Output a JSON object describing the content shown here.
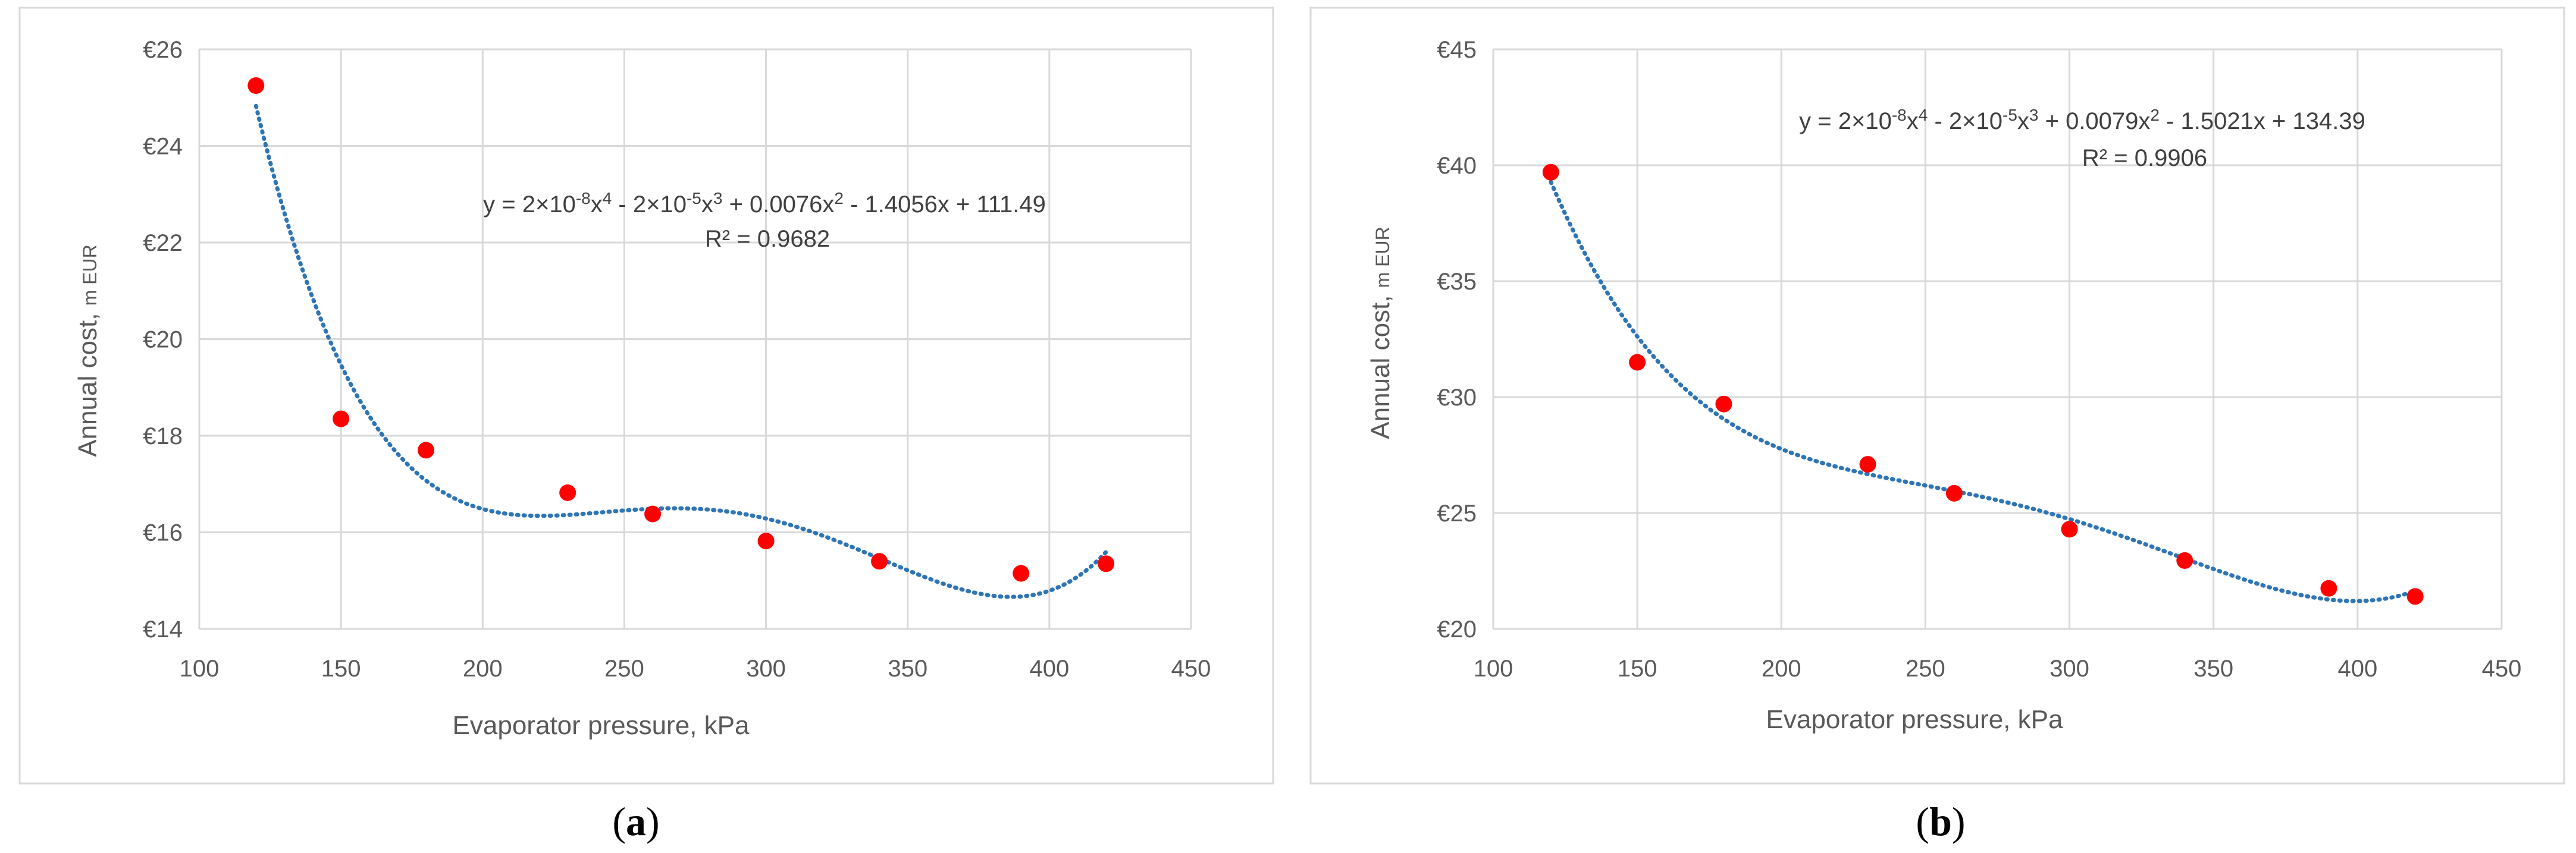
{
  "chart_data": [
    {
      "type": "scatter",
      "panel_label_letter": "a",
      "xlabel": "Evaporator pressure, kPa",
      "ylabel_main": "Annual cost, ",
      "ylabel_unit": "m EUR",
      "xlim": [
        100,
        450
      ],
      "ylim": [
        14,
        26
      ],
      "x_ticks": [
        100,
        150,
        200,
        250,
        300,
        350,
        400,
        450
      ],
      "x_tick_labels": [
        "100",
        "150",
        "200",
        "250",
        "300",
        "350",
        "400",
        "450"
      ],
      "y_ticks": [
        14,
        16,
        18,
        20,
        22,
        24,
        26
      ],
      "y_tick_labels": [
        "€14",
        "€16",
        "€18",
        "€20",
        "€22",
        "€24",
        "€26"
      ],
      "grid": true,
      "series": [
        {
          "x": [
            120,
            150,
            180,
            230,
            260,
            300,
            340,
            390,
            420
          ],
          "y": [
            25.25,
            18.35,
            17.7,
            16.82,
            16.38,
            15.82,
            15.4,
            15.15,
            15.35
          ],
          "color": "#FF0000"
        }
      ],
      "trendline": {
        "kind": "polynomial-4",
        "color": "#2E75B6",
        "x_range": [
          120,
          420
        ],
        "equation_text": "y = 2×10-8x4 - 2×10-5x3 + 0.0076x2 - 1.4056x + 111.49",
        "r2_text": "R² = 0.9682",
        "eq_parts": [
          "y = 2×10",
          "-8",
          "x",
          "4",
          " - 2×10",
          "-5",
          "x",
          "3",
          " + 0.0076x",
          "2",
          " - 1.4056x + 111.49"
        ]
      }
    },
    {
      "type": "scatter",
      "panel_label_letter": "b",
      "xlabel": "Evaporator pressure, kPa",
      "ylabel_main": "Annual cost, ",
      "ylabel_unit": "m EUR",
      "xlim": [
        100,
        450
      ],
      "ylim": [
        20,
        45
      ],
      "x_ticks": [
        100,
        150,
        200,
        250,
        300,
        350,
        400,
        450
      ],
      "x_tick_labels": [
        "100",
        "150",
        "200",
        "250",
        "300",
        "350",
        "400",
        "450"
      ],
      "y_ticks": [
        20,
        25,
        30,
        35,
        40,
        45
      ],
      "y_tick_labels": [
        "€20",
        "€25",
        "€30",
        "€35",
        "€40",
        "€45"
      ],
      "grid": true,
      "series": [
        {
          "x": [
            120,
            150,
            180,
            230,
            260,
            300,
            340,
            390,
            420
          ],
          "y": [
            39.7,
            31.5,
            29.7,
            27.1,
            25.85,
            24.3,
            22.95,
            21.75,
            21.4
          ],
          "color": "#FF0000"
        }
      ],
      "trendline": {
        "kind": "polynomial-4",
        "color": "#2E75B6",
        "x_range": [
          120,
          420
        ],
        "equation_text": "y = 2×10-8x4 - 2×10-5x3 + 0.0079x2 - 1.5021x + 134.39",
        "r2_text": "R² = 0.9906",
        "eq_parts": [
          "y = 2×10",
          "-8",
          "x",
          "4",
          " - 2×10",
          "-5",
          "x",
          "3",
          " + 0.0079x",
          "2",
          " - 1.5021x + 134.39"
        ]
      }
    }
  ]
}
